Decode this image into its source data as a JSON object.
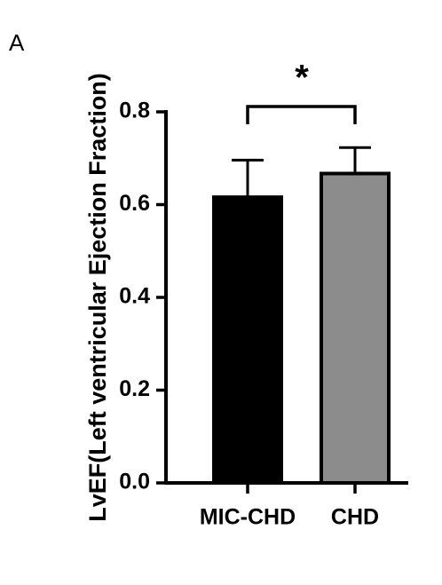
{
  "chart_data": {
    "type": "bar",
    "panel_label": "A",
    "ylabel": "LvEF(Left ventricular Ejection Fraction)",
    "categories": [
      "MIC-CHD",
      "CHD"
    ],
    "values": [
      0.616,
      0.667
    ],
    "errors": [
      0.08,
      0.056
    ],
    "colors": [
      "#000000",
      "#8c8c8c"
    ],
    "ylim": [
      0,
      0.8
    ],
    "yticks": [
      {
        "value": 0,
        "label": "0.0"
      },
      0.2,
      0.4,
      0.6,
      0.8
    ],
    "significance": "*"
  }
}
